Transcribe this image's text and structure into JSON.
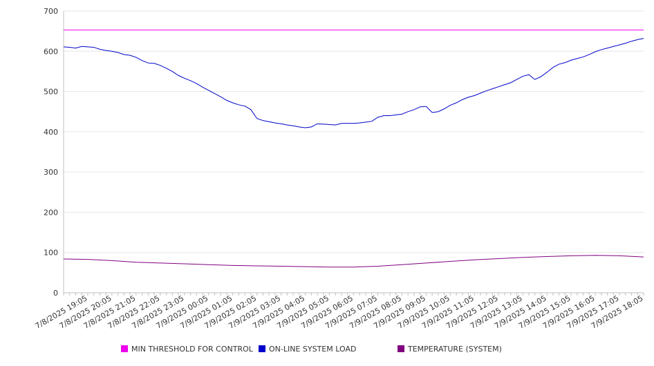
{
  "chart_data": {
    "type": "line",
    "title": "",
    "xlabel": "",
    "ylabel": "",
    "ylim": [
      0,
      700
    ],
    "y_ticks": [
      0,
      100,
      200,
      300,
      400,
      500,
      600,
      700
    ],
    "grid": "horizontal",
    "legend_position": "bottom",
    "x_tick_labels": [
      "7/8/2025 19:05",
      "7/8/2025 20:05",
      "7/8/2025 21:05",
      "7/8/2025 22:05",
      "7/8/2025 23:05",
      "7/9/2025 00:05",
      "7/9/2025 01:05",
      "7/9/2025 02:05",
      "7/9/2025 03:05",
      "7/9/2025 04:05",
      "7/9/2025 05:05",
      "7/9/2025 06:05",
      "7/9/2025 07:05",
      "7/9/2025 08:05",
      "7/9/2025 09:05",
      "7/9/2025 10:05",
      "7/9/2025 11:05",
      "7/9/2025 12:05",
      "7/9/2025 13:05",
      "7/9/2025 14:05",
      "7/9/2025 15:05",
      "7/9/2025 16:05",
      "7/9/2025 17:05",
      "7/9/2025 18:05"
    ],
    "x_start": "7/8/2025 18:05",
    "x_end": "7/9/2025 18:05",
    "series": [
      {
        "name": "MIN THRESHOLD FOR CONTROL",
        "color": "#ee00ee",
        "points": [
          [
            "7/8/2025 18:05",
            653
          ],
          [
            "7/9/2025 18:05",
            653
          ]
        ]
      },
      {
        "name": "ON-LINE SYSTEM LOAD",
        "color": "#0000cc",
        "points": [
          [
            "7/8/2025 18:05",
            611
          ],
          [
            "7/8/2025 18:20",
            610
          ],
          [
            "7/8/2025 18:35",
            608
          ],
          [
            "7/8/2025 18:50",
            612
          ],
          [
            "7/8/2025 19:05",
            611
          ],
          [
            "7/8/2025 19:20",
            610
          ],
          [
            "7/8/2025 19:35",
            605
          ],
          [
            "7/8/2025 19:50",
            602
          ],
          [
            "7/8/2025 20:05",
            600
          ],
          [
            "7/8/2025 20:20",
            597
          ],
          [
            "7/8/2025 20:35",
            592
          ],
          [
            "7/8/2025 20:50",
            590
          ],
          [
            "7/8/2025 21:05",
            585
          ],
          [
            "7/8/2025 21:20",
            577
          ],
          [
            "7/8/2025 21:35",
            571
          ],
          [
            "7/8/2025 21:50",
            570
          ],
          [
            "7/8/2025 22:05",
            565
          ],
          [
            "7/8/2025 22:20",
            558
          ],
          [
            "7/8/2025 22:35",
            550
          ],
          [
            "7/8/2025 22:50",
            540
          ],
          [
            "7/8/2025 23:05",
            533
          ],
          [
            "7/8/2025 23:20",
            527
          ],
          [
            "7/8/2025 23:35",
            520
          ],
          [
            "7/8/2025 23:50",
            511
          ],
          [
            "7/9/2025 00:05",
            503
          ],
          [
            "7/9/2025 00:20",
            495
          ],
          [
            "7/9/2025 00:35",
            487
          ],
          [
            "7/9/2025 00:50",
            478
          ],
          [
            "7/9/2025 01:05",
            472
          ],
          [
            "7/9/2025 01:20",
            467
          ],
          [
            "7/9/2025 01:35",
            464
          ],
          [
            "7/9/2025 01:50",
            455
          ],
          [
            "7/9/2025 02:05",
            433
          ],
          [
            "7/9/2025 02:20",
            428
          ],
          [
            "7/9/2025 02:35",
            425
          ],
          [
            "7/9/2025 02:50",
            422
          ],
          [
            "7/9/2025 03:05",
            420
          ],
          [
            "7/9/2025 03:20",
            417
          ],
          [
            "7/9/2025 03:35",
            415
          ],
          [
            "7/9/2025 03:50",
            412
          ],
          [
            "7/9/2025 04:05",
            410
          ],
          [
            "7/9/2025 04:20",
            412
          ],
          [
            "7/9/2025 04:35",
            420
          ],
          [
            "7/9/2025 04:50",
            419
          ],
          [
            "7/9/2025 05:05",
            418
          ],
          [
            "7/9/2025 05:20",
            417
          ],
          [
            "7/9/2025 05:35",
            421
          ],
          [
            "7/9/2025 05:50",
            421
          ],
          [
            "7/9/2025 06:05",
            421
          ],
          [
            "7/9/2025 06:20",
            422
          ],
          [
            "7/9/2025 06:35",
            424
          ],
          [
            "7/9/2025 06:50",
            426
          ],
          [
            "7/9/2025 07:05",
            436
          ],
          [
            "7/9/2025 07:20",
            440
          ],
          [
            "7/9/2025 07:35",
            440
          ],
          [
            "7/9/2025 07:50",
            442
          ],
          [
            "7/9/2025 08:05",
            444
          ],
          [
            "7/9/2025 08:20",
            450
          ],
          [
            "7/9/2025 08:35",
            455
          ],
          [
            "7/9/2025 08:50",
            462
          ],
          [
            "7/9/2025 09:05",
            463
          ],
          [
            "7/9/2025 09:20",
            448
          ],
          [
            "7/9/2025 09:35",
            450
          ],
          [
            "7/9/2025 09:50",
            457
          ],
          [
            "7/9/2025 10:05",
            466
          ],
          [
            "7/9/2025 10:20",
            472
          ],
          [
            "7/9/2025 10:35",
            480
          ],
          [
            "7/9/2025 10:50",
            486
          ],
          [
            "7/9/2025 11:05",
            490
          ],
          [
            "7/9/2025 11:20",
            496
          ],
          [
            "7/9/2025 11:35",
            502
          ],
          [
            "7/9/2025 11:50",
            507
          ],
          [
            "7/9/2025 12:05",
            512
          ],
          [
            "7/9/2025 12:20",
            517
          ],
          [
            "7/9/2025 12:35",
            522
          ],
          [
            "7/9/2025 12:50",
            530
          ],
          [
            "7/9/2025 13:05",
            538
          ],
          [
            "7/9/2025 13:20",
            542
          ],
          [
            "7/9/2025 13:35",
            530
          ],
          [
            "7/9/2025 13:50",
            537
          ],
          [
            "7/9/2025 14:05",
            548
          ],
          [
            "7/9/2025 14:20",
            560
          ],
          [
            "7/9/2025 14:35",
            568
          ],
          [
            "7/9/2025 14:50",
            572
          ],
          [
            "7/9/2025 15:05",
            578
          ],
          [
            "7/9/2025 15:20",
            582
          ],
          [
            "7/9/2025 15:35",
            586
          ],
          [
            "7/9/2025 15:50",
            592
          ],
          [
            "7/9/2025 16:05",
            599
          ],
          [
            "7/9/2025 16:20",
            604
          ],
          [
            "7/9/2025 16:35",
            608
          ],
          [
            "7/9/2025 16:50",
            612
          ],
          [
            "7/9/2025 17:05",
            616
          ],
          [
            "7/9/2025 17:20",
            620
          ],
          [
            "7/9/2025 17:35",
            625
          ],
          [
            "7/9/2025 17:50",
            629
          ],
          [
            "7/9/2025 18:05",
            632
          ]
        ]
      },
      {
        "name": "TEMPERATURE (SYSTEM)",
        "color": "#800080",
        "points": [
          [
            "7/8/2025 18:05",
            84
          ],
          [
            "7/8/2025 19:05",
            83
          ],
          [
            "7/8/2025 20:05",
            80
          ],
          [
            "7/8/2025 21:05",
            76
          ],
          [
            "7/8/2025 22:05",
            74
          ],
          [
            "7/8/2025 23:05",
            72
          ],
          [
            "7/9/2025 00:05",
            70
          ],
          [
            "7/9/2025 01:05",
            68
          ],
          [
            "7/9/2025 02:05",
            67
          ],
          [
            "7/9/2025 03:05",
            66
          ],
          [
            "7/9/2025 04:05",
            65
          ],
          [
            "7/9/2025 05:05",
            64
          ],
          [
            "7/9/2025 06:05",
            64
          ],
          [
            "7/9/2025 07:05",
            66
          ],
          [
            "7/9/2025 08:05",
            70
          ],
          [
            "7/9/2025 09:05",
            74
          ],
          [
            "7/9/2025 10:05",
            78
          ],
          [
            "7/9/2025 11:05",
            82
          ],
          [
            "7/9/2025 12:05",
            85
          ],
          [
            "7/9/2025 13:05",
            88
          ],
          [
            "7/9/2025 14:05",
            90
          ],
          [
            "7/9/2025 15:05",
            92
          ],
          [
            "7/9/2025 16:05",
            93
          ],
          [
            "7/9/2025 17:05",
            92
          ],
          [
            "7/9/2025 18:05",
            89
          ]
        ]
      }
    ]
  }
}
